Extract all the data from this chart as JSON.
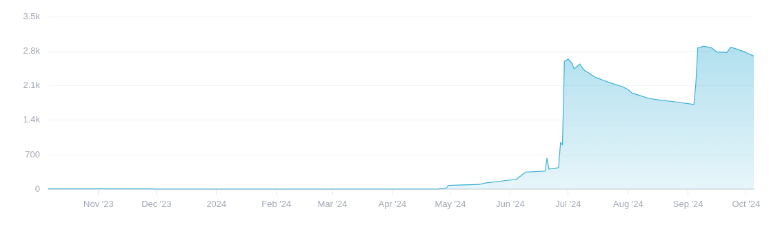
{
  "chart_data": {
    "type": "area",
    "x": [
      "2023-10-06",
      "2023-11-28",
      "2023-12-01",
      "2024-04-24",
      "2024-04-29",
      "2024-04-30",
      "2024-05-16",
      "2024-05-19",
      "2024-06-01",
      "2024-06-04",
      "2024-06-07",
      "2024-06-09",
      "2024-06-19",
      "2024-06-20",
      "2024-06-21",
      "2024-06-26",
      "2024-06-27",
      "2024-06-28",
      "2024-06-29",
      "2024-07-01",
      "2024-07-03",
      "2024-07-04",
      "2024-07-05",
      "2024-07-07",
      "2024-07-09",
      "2024-07-15",
      "2024-07-21",
      "2024-07-29",
      "2024-08-01",
      "2024-08-03",
      "2024-08-07",
      "2024-08-12",
      "2024-08-17",
      "2024-08-26",
      "2024-09-04",
      "2024-09-05",
      "2024-09-06",
      "2024-09-07",
      "2024-09-09",
      "2024-09-13",
      "2024-09-16",
      "2024-09-21",
      "2024-09-23",
      "2024-09-27",
      "2024-10-01",
      "2024-10-05"
    ],
    "series": [
      {
        "color": "#3ab0d6",
        "values": [
          10,
          10,
          5,
          5,
          30,
          80,
          100,
          130,
          190,
          200,
          290,
          350,
          370,
          630,
          410,
          440,
          950,
          900,
          2590,
          2640,
          2550,
          2440,
          2470,
          2540,
          2420,
          2270,
          2180,
          2080,
          2020,
          1950,
          1900,
          1840,
          1810,
          1770,
          1720,
          2140,
          2870,
          2870,
          2900,
          2870,
          2780,
          2770,
          2880,
          2830,
          2770,
          2700
        ]
      }
    ],
    "xlim": [
      "2023-10-06",
      "2024-10-05"
    ],
    "xticks": [
      {
        "value": "2023-11-01",
        "label": "Nov '23"
      },
      {
        "value": "2023-12-01",
        "label": "Dec '23"
      },
      {
        "value": "2024-01-01",
        "label": "2024"
      },
      {
        "value": "2024-02-01",
        "label": "Feb '24"
      },
      {
        "value": "2024-03-01",
        "label": "Mar '24"
      },
      {
        "value": "2024-04-01",
        "label": "Apr '24"
      },
      {
        "value": "2024-05-01",
        "label": "May '24"
      },
      {
        "value": "2024-06-01",
        "label": "Jun '24"
      },
      {
        "value": "2024-07-01",
        "label": "Jul '24"
      },
      {
        "value": "2024-08-01",
        "label": "Aug '24"
      },
      {
        "value": "2024-09-01",
        "label": "Sep '24"
      },
      {
        "value": "2024-10-01",
        "label": "Oct '24"
      }
    ],
    "ylim": [
      0,
      3500
    ],
    "yticks": [
      0,
      700,
      {
        "value": 1400,
        "label": "1.4k"
      },
      {
        "value": 2100,
        "label": "2.1k"
      },
      {
        "value": 2800,
        "label": "2.8k"
      },
      {
        "value": 3500,
        "label": "3.5k"
      }
    ],
    "grid": "y",
    "legend": false,
    "marker": "none",
    "line_style": "solid"
  }
}
